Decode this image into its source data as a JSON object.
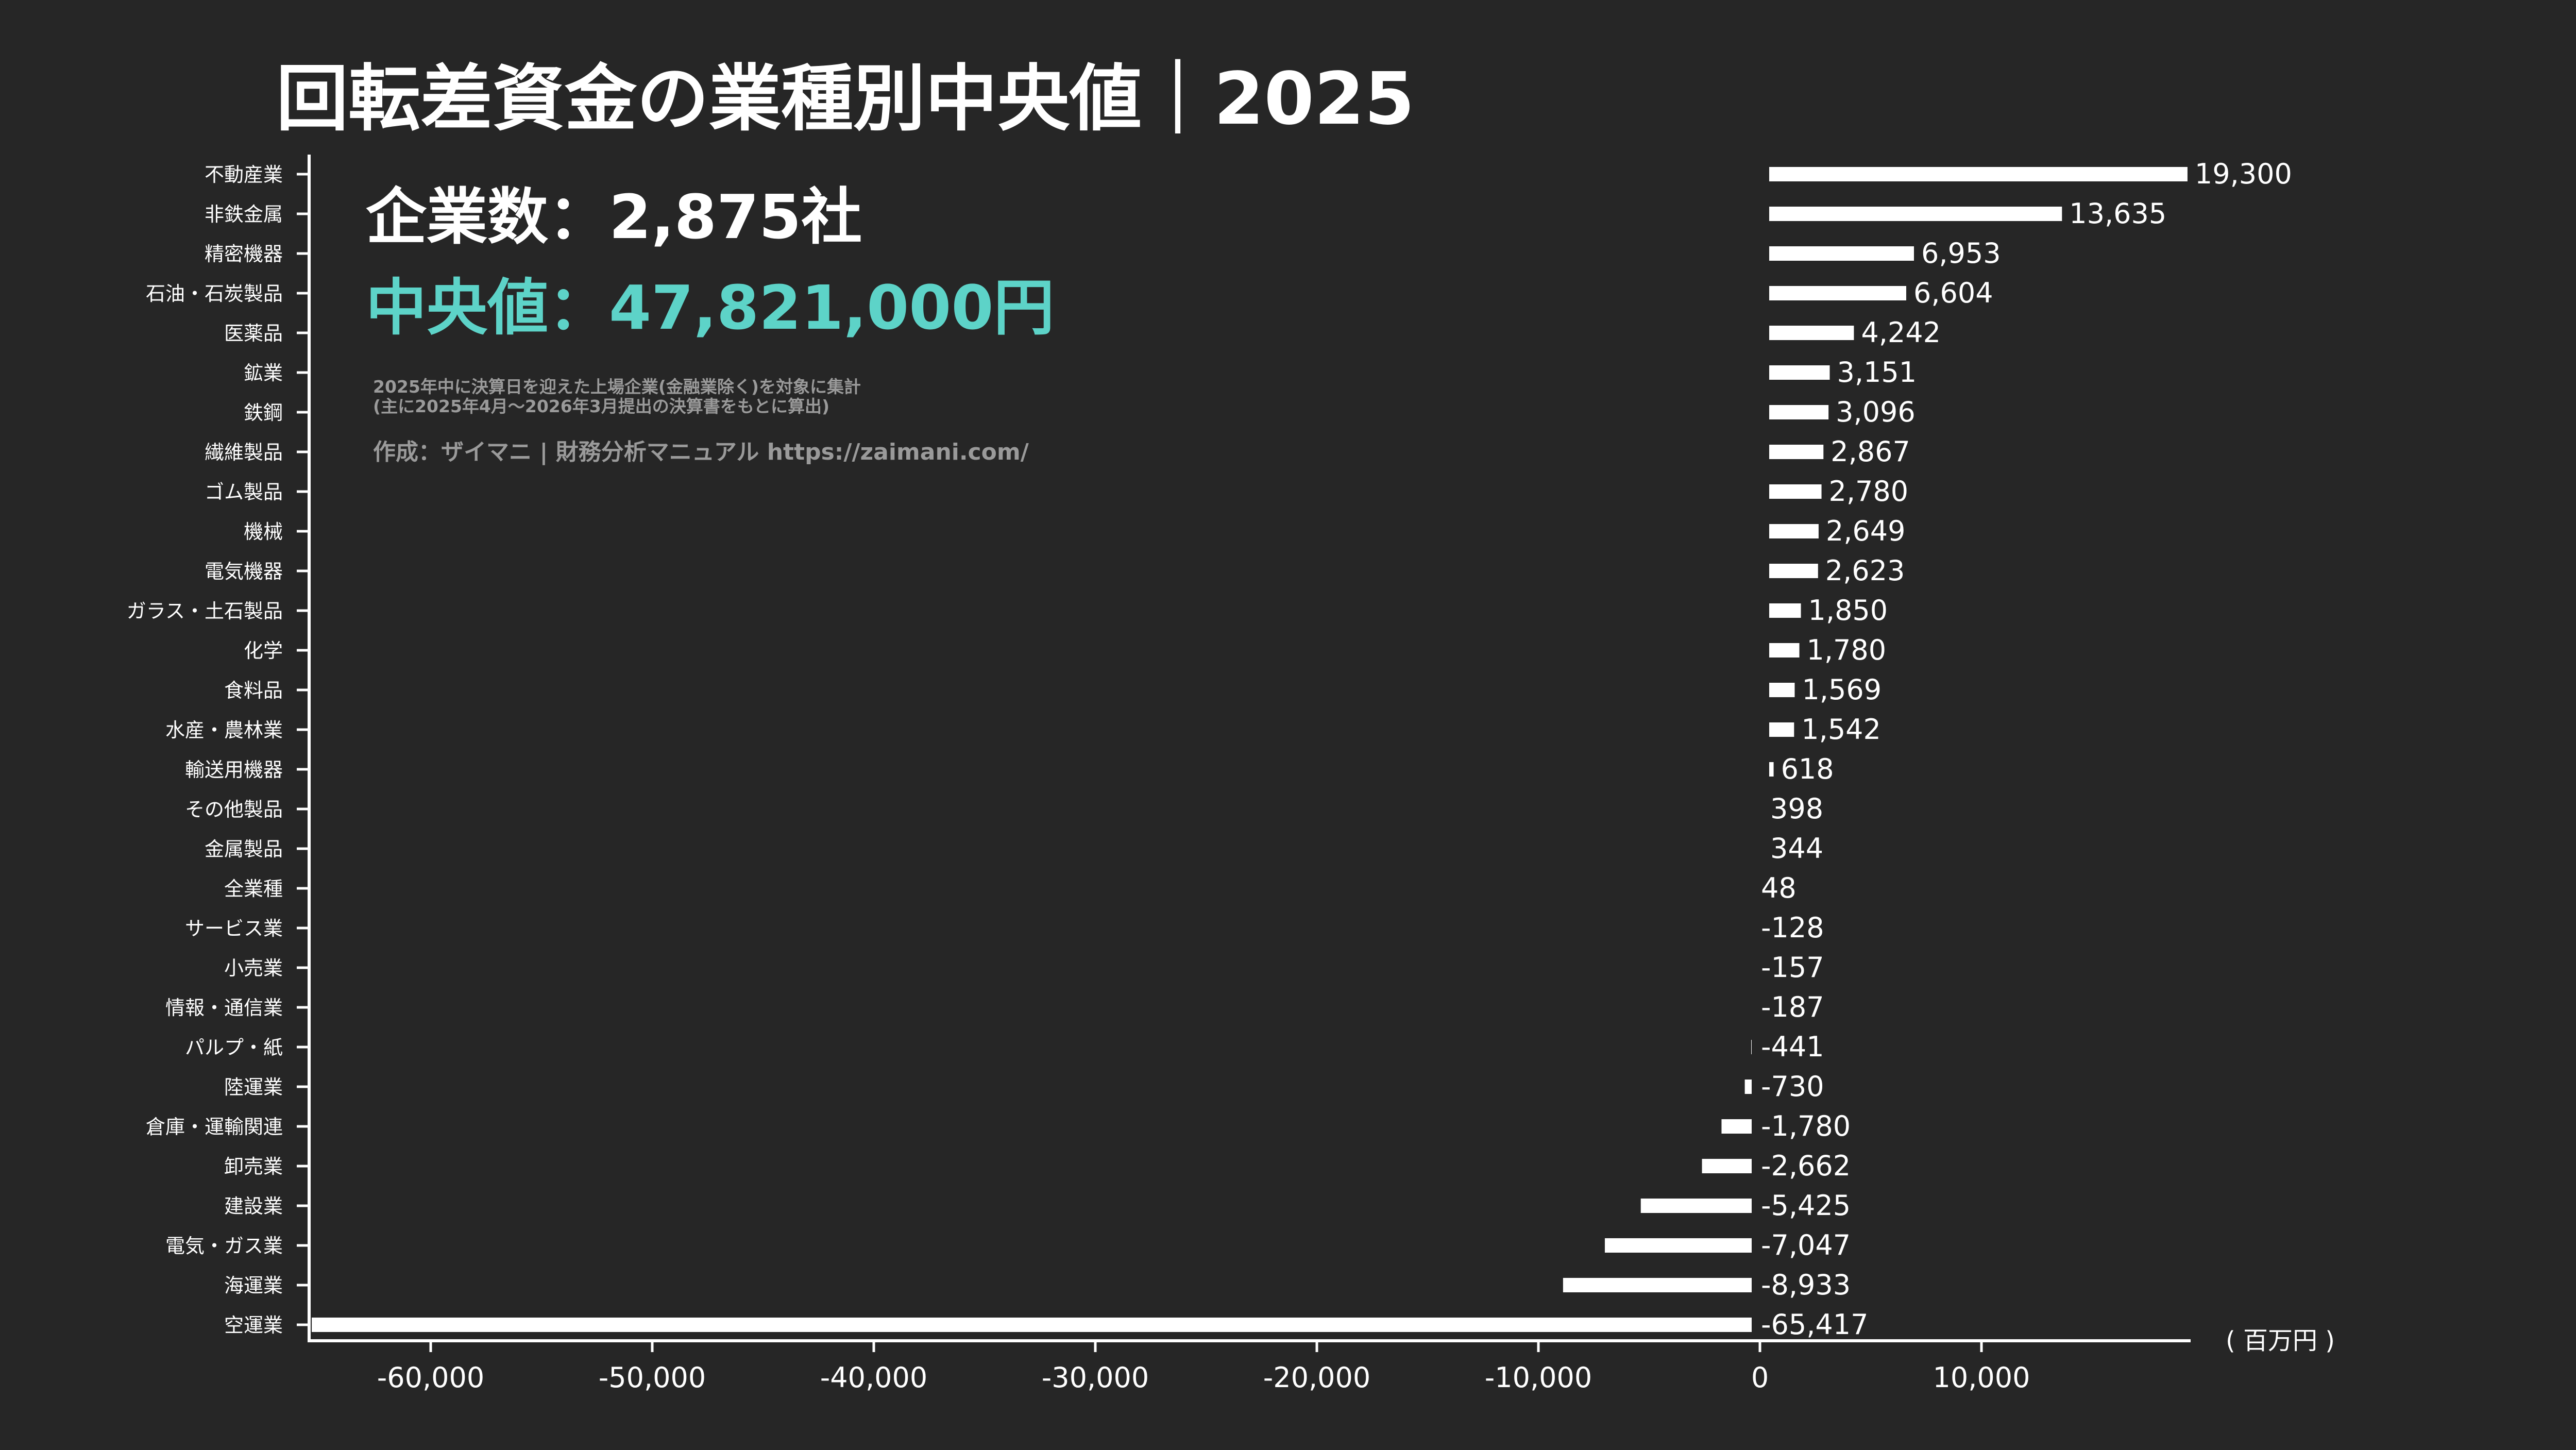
{
  "header": {
    "title": "回転差資金の業種別中央値｜2025",
    "company_count": "企業数：2,875社",
    "median": "中央値：47,821,000円",
    "note_line1": "2025年中に決算日を迎えた上場企業(金融業除く)を対象に集計",
    "note_line2": "(主に2025年4月〜2026年3月提出の決算書をもとに算出)",
    "credit": "作成：ザイマニ | 財務分析マニュアル https://zaimani.com/"
  },
  "colors": {
    "background": "#262626",
    "bar": "#ffffff",
    "highlight": "#5dd3c8",
    "note": "#9a9a9a"
  },
  "chart_data": {
    "type": "bar",
    "orientation": "horizontal",
    "title": "回転差資金の業種別中央値｜2025",
    "xlabel": "",
    "unit_label": "( 百万円 )",
    "xlim": [
      -65417,
      19300
    ],
    "xticks": [
      -60000,
      -50000,
      -40000,
      -30000,
      -20000,
      -10000,
      0,
      10000
    ],
    "xtick_labels": [
      "-60,000",
      "-50,000",
      "-40,000",
      "-30,000",
      "-20,000",
      "-10,000",
      "0",
      "10,000"
    ],
    "highlight_category": "全業種",
    "categories": [
      "不動産業",
      "非鉄金属",
      "精密機器",
      "石油・石炭製品",
      "医薬品",
      "鉱業",
      "鉄鋼",
      "繊維製品",
      "ゴム製品",
      "機械",
      "電気機器",
      "ガラス・土石製品",
      "化学",
      "食料品",
      "水産・農林業",
      "輸送用機器",
      "その他製品",
      "金属製品",
      "全業種",
      "サービス業",
      "小売業",
      "情報・通信業",
      "パルプ・紙",
      "陸運業",
      "倉庫・運輸関連",
      "卸売業",
      "建設業",
      "電気・ガス業",
      "海運業",
      "空運業"
    ],
    "values": [
      19300,
      13635,
      6953,
      6604,
      4242,
      3151,
      3096,
      2867,
      2780,
      2649,
      2623,
      1850,
      1780,
      1569,
      1542,
      618,
      398,
      344,
      48,
      -128,
      -157,
      -187,
      -441,
      -730,
      -1780,
      -2662,
      -5425,
      -7047,
      -8933,
      -65417
    ],
    "value_labels": [
      "19,300",
      "13,635",
      "6,953",
      "6,604",
      "4,242",
      "3,151",
      "3,096",
      "2,867",
      "2,780",
      "2,649",
      "2,623",
      "1,850",
      "1,780",
      "1,569",
      "1,542",
      "618",
      "398",
      "344",
      "48",
      "-128",
      "-157",
      "-187",
      "-441",
      "-730",
      "-1,780",
      "-2,662",
      "-5,425",
      "-7,047",
      "-8,933",
      "-65,417"
    ]
  }
}
